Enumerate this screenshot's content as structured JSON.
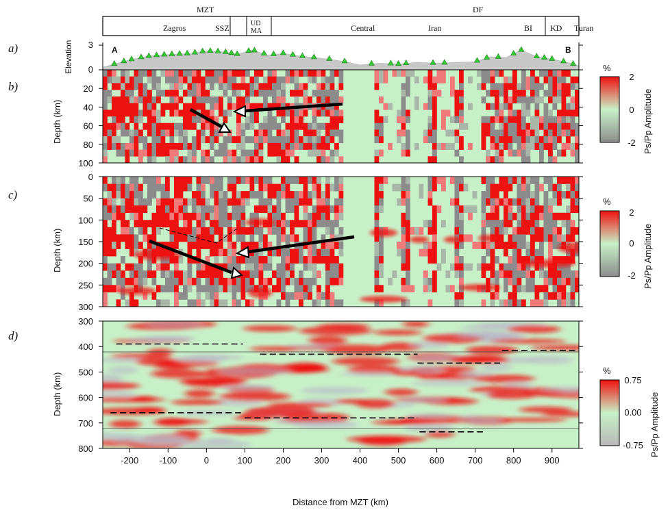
{
  "figure": {
    "top_bar": {
      "groups": [
        "MZT",
        "DF"
      ],
      "regions": [
        "Zagros",
        "SSZ",
        "UD",
        "MA",
        "Central",
        "Iran",
        "BI",
        "KD",
        "Turan"
      ]
    },
    "panel_letters": [
      "a)",
      "b)",
      "c)",
      "d)"
    ],
    "profile_ends": [
      "A",
      "B"
    ],
    "xlabel": "Distance from MZT (km)"
  },
  "chart_data": [
    {
      "type": "area",
      "panel": "a",
      "ylabel": "Elevation",
      "ylim": [
        0,
        3
      ],
      "yticks": [
        "0",
        "3"
      ],
      "x": [
        -270,
        -240,
        -200,
        -160,
        -120,
        -80,
        -40,
        0,
        40,
        80,
        120,
        160,
        200,
        240,
        280,
        320,
        360,
        400,
        450,
        500,
        550,
        600,
        650,
        700,
        740,
        780,
        820,
        860,
        900,
        940,
        970
      ],
      "values": [
        0.3,
        0.7,
        1.2,
        1.6,
        1.8,
        1.9,
        2.0,
        2.3,
        2.2,
        1.9,
        2.4,
        1.8,
        2.0,
        1.7,
        1.5,
        1.3,
        1.0,
        0.6,
        0.8,
        0.7,
        0.9,
        0.8,
        0.9,
        1.0,
        1.6,
        1.5,
        2.4,
        1.6,
        1.3,
        0.9,
        0.5
      ],
      "stations_km": [
        -240,
        -215,
        -195,
        -170,
        -150,
        -130,
        -110,
        -90,
        -70,
        -50,
        -30,
        -10,
        10,
        30,
        50,
        65,
        80,
        110,
        125,
        150,
        175,
        200,
        225,
        250,
        280,
        320,
        360,
        430,
        480,
        500,
        520,
        590,
        620,
        705,
        730,
        760,
        800,
        820,
        860,
        880,
        900,
        930,
        955
      ]
    },
    {
      "type": "heatmap",
      "panel": "b",
      "ylabel": "Depth (km)",
      "ylim": [
        100,
        0
      ],
      "yticks": [
        "20",
        "40",
        "60",
        "80",
        "100"
      ],
      "colorbar": {
        "label": "Ps/Pp Amplitude",
        "unit": "%",
        "ticks": [
          "2",
          "0",
          "-2"
        ],
        "range": [
          -2,
          2
        ]
      }
    },
    {
      "type": "heatmap",
      "panel": "c",
      "ylabel": "Depth (km)",
      "ylim": [
        300,
        0
      ],
      "yticks": [
        "0",
        "50",
        "100",
        "150",
        "200",
        "250",
        "300"
      ],
      "colorbar": {
        "label": "Ps/Pp Amplitude",
        "unit": "%",
        "ticks": [
          "2",
          "0",
          "-2"
        ],
        "range": [
          -2,
          2
        ]
      }
    },
    {
      "type": "heatmap",
      "panel": "d",
      "ylabel": "Depth (km)",
      "ylim": [
        800,
        300
      ],
      "yticks": [
        "300",
        "400",
        "500",
        "600",
        "700",
        "800"
      ],
      "xlim": [
        -270,
        970
      ],
      "xticks": [
        "-200",
        "-100",
        "0",
        "100",
        "200",
        "300",
        "400",
        "500",
        "600",
        "700",
        "800",
        "900"
      ],
      "colorbar": {
        "label": "Ps/Pp Amplitude",
        "unit": "%",
        "ticks": [
          "0.75",
          "0.00",
          "-0.75"
        ],
        "range": [
          -0.75,
          0.75
        ]
      },
      "dashed_segments": [
        {
          "x": [
            -235,
            95
          ],
          "depth": 390
        },
        {
          "x": [
            140,
            550
          ],
          "depth": 430
        },
        {
          "x": [
            550,
            765
          ],
          "depth": 465
        },
        {
          "x": [
            770,
            960
          ],
          "depth": 415
        },
        {
          "x": [
            -250,
            90
          ],
          "depth": 660
        },
        {
          "x": [
            100,
            550
          ],
          "depth": 680
        },
        {
          "x": [
            555,
            720
          ],
          "depth": 735
        }
      ]
    }
  ],
  "colors": {
    "positive": "#ee1111",
    "negative": "#8c8c8c",
    "zero": "#c8f0c8",
    "station": "#33cc33",
    "topography": "#c8c8c8"
  }
}
